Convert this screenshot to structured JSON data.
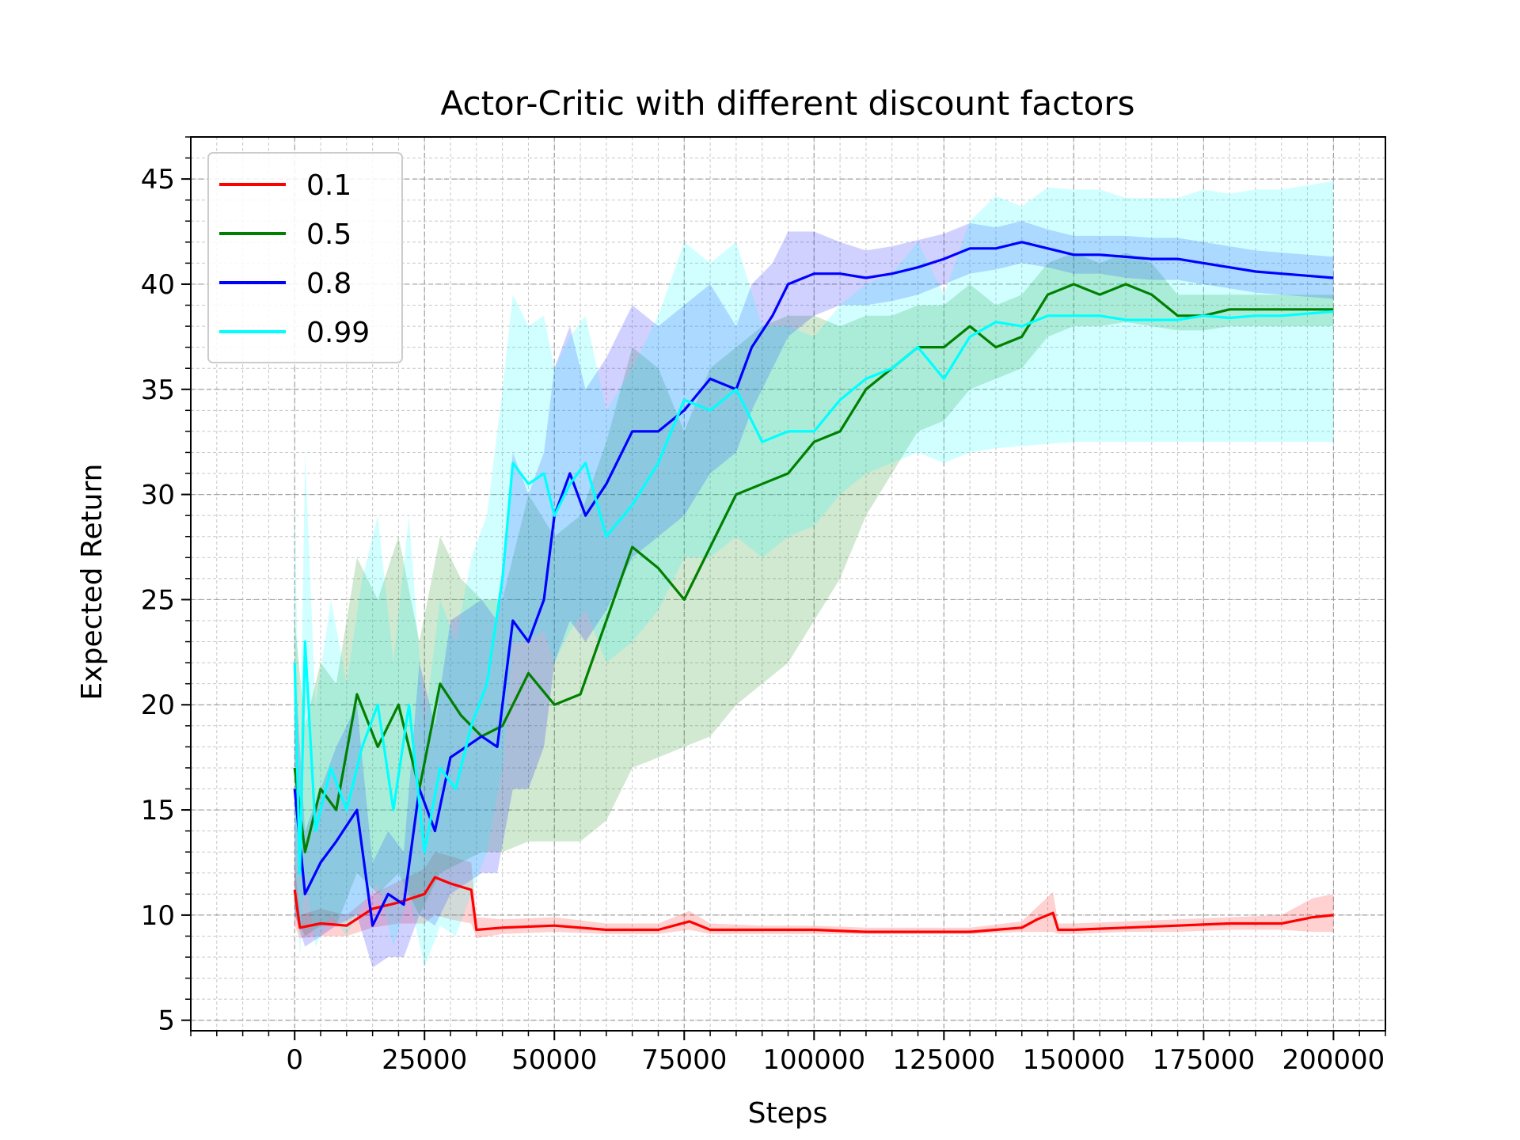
{
  "chart_data": {
    "type": "line",
    "title": "Actor-Critic with different discount factors",
    "xlabel": "Steps",
    "ylabel": "Expected Return",
    "xlim": [
      -20000,
      210000
    ],
    "ylim": [
      4.5,
      47
    ],
    "xticks": [
      0,
      25000,
      50000,
      75000,
      100000,
      125000,
      150000,
      175000,
      200000
    ],
    "xtick_labels": [
      "0",
      "25000",
      "50000",
      "75000",
      "100000",
      "125000",
      "150000",
      "175000",
      "200000"
    ],
    "yticks": [
      5,
      10,
      15,
      20,
      25,
      30,
      35,
      40,
      45
    ],
    "ytick_labels": [
      "5",
      "10",
      "15",
      "20",
      "25",
      "30",
      "35",
      "40",
      "45"
    ],
    "grid": true,
    "minor_grid": true,
    "legend_position": "top-left",
    "series": [
      {
        "name": "0.1",
        "color": "#ff0000",
        "x": [
          0,
          1000,
          5000,
          10000,
          15000,
          20000,
          25000,
          27000,
          30000,
          34000,
          35000,
          40000,
          50000,
          60000,
          70000,
          76000,
          80000,
          90000,
          100000,
          110000,
          120000,
          130000,
          140000,
          143000,
          146000,
          147000,
          150000,
          160000,
          170000,
          180000,
          190000,
          196000,
          200000
        ],
        "y": [
          11.2,
          9.4,
          9.6,
          9.5,
          10.3,
          10.6,
          11.0,
          11.8,
          11.5,
          11.2,
          9.3,
          9.4,
          9.5,
          9.3,
          9.3,
          9.7,
          9.3,
          9.3,
          9.3,
          9.2,
          9.2,
          9.2,
          9.4,
          9.8,
          10.1,
          9.3,
          9.3,
          9.4,
          9.5,
          9.6,
          9.6,
          9.9,
          10.0
        ],
        "band_lower": [
          9.5,
          8.9,
          9.0,
          9.0,
          9.4,
          9.6,
          9.6,
          10.0,
          9.8,
          9.6,
          8.9,
          9.1,
          9.2,
          9.1,
          9.1,
          9.3,
          9.1,
          9.1,
          9.1,
          9.1,
          9.1,
          9.1,
          9.2,
          9.2,
          9.2,
          9.1,
          9.1,
          9.2,
          9.2,
          9.3,
          9.3,
          9.2,
          9.2
        ],
        "band_upper": [
          12.5,
          10.0,
          10.3,
          10.0,
          11.0,
          11.6,
          12.2,
          13.0,
          12.8,
          12.5,
          9.9,
          9.8,
          9.9,
          9.6,
          9.6,
          10.2,
          9.6,
          9.5,
          9.5,
          9.4,
          9.4,
          9.4,
          9.7,
          10.4,
          11.1,
          9.6,
          9.6,
          9.7,
          9.8,
          9.9,
          10.0,
          10.8,
          11.0
        ]
      },
      {
        "name": "0.5",
        "color": "#008000",
        "x": [
          0,
          2000,
          5000,
          8000,
          12000,
          16000,
          20000,
          24000,
          28000,
          32000,
          36000,
          40000,
          45000,
          50000,
          55000,
          60000,
          65000,
          70000,
          75000,
          80000,
          85000,
          90000,
          95000,
          100000,
          105000,
          110000,
          115000,
          120000,
          125000,
          130000,
          135000,
          140000,
          145000,
          150000,
          155000,
          160000,
          165000,
          170000,
          175000,
          180000,
          185000,
          190000,
          195000,
          200000
        ],
        "y": [
          17.0,
          13.0,
          16.0,
          15.0,
          20.5,
          18.0,
          20.0,
          16.0,
          21.0,
          19.5,
          18.5,
          19.0,
          21.5,
          20.0,
          20.5,
          24.0,
          27.5,
          26.5,
          25.0,
          27.5,
          30.0,
          30.5,
          31.0,
          32.5,
          33.0,
          35.0,
          36.0,
          37.0,
          37.0,
          38.0,
          37.0,
          37.5,
          39.5,
          40.0,
          39.5,
          40.0,
          39.5,
          38.5,
          38.5,
          38.8,
          38.8,
          38.8,
          38.8,
          38.8
        ],
        "band_lower": [
          10.0,
          9.0,
          9.5,
          9.5,
          12.0,
          11.0,
          12.0,
          10.0,
          12.0,
          12.5,
          13.0,
          13.0,
          13.5,
          13.5,
          13.5,
          14.5,
          17.0,
          17.5,
          18.0,
          18.5,
          20.0,
          21.0,
          22.0,
          24.0,
          26.0,
          29.0,
          31.0,
          33.0,
          33.5,
          35.0,
          35.5,
          36.0,
          37.5,
          38.0,
          38.0,
          38.2,
          38.0,
          37.8,
          37.8,
          38.0,
          38.0,
          38.0,
          38.0,
          38.0
        ],
        "band_upper": [
          24.0,
          19.0,
          22.0,
          21.0,
          27.0,
          25.0,
          28.0,
          23.0,
          28.0,
          26.0,
          25.0,
          25.0,
          30.0,
          28.0,
          29.0,
          32.5,
          37.0,
          36.0,
          33.0,
          36.0,
          37.0,
          38.0,
          38.5,
          38.5,
          38.0,
          38.5,
          38.5,
          39.0,
          39.0,
          40.0,
          39.0,
          39.5,
          41.0,
          41.5,
          41.0,
          41.5,
          41.0,
          39.5,
          39.5,
          39.5,
          39.5,
          39.5,
          39.5,
          39.5
        ]
      },
      {
        "name": "0.8",
        "color": "#0000ff",
        "x": [
          0,
          2000,
          5000,
          8000,
          12000,
          15000,
          18000,
          21000,
          24000,
          27000,
          30000,
          33000,
          36000,
          39000,
          42000,
          45000,
          48000,
          50000,
          53000,
          56000,
          60000,
          65000,
          70000,
          75000,
          80000,
          85000,
          88000,
          92000,
          95000,
          100000,
          105000,
          110000,
          115000,
          120000,
          125000,
          130000,
          135000,
          140000,
          145000,
          150000,
          155000,
          160000,
          165000,
          170000,
          175000,
          180000,
          185000,
          190000,
          195000,
          200000
        ],
        "y": [
          16.0,
          11.0,
          12.5,
          13.5,
          15.0,
          9.5,
          11.0,
          10.5,
          16.0,
          14.0,
          17.5,
          18.0,
          18.5,
          18.0,
          24.0,
          23.0,
          25.0,
          29.0,
          31.0,
          29.0,
          30.5,
          33.0,
          33.0,
          34.0,
          35.5,
          35.0,
          37.0,
          38.5,
          40.0,
          40.5,
          40.5,
          40.3,
          40.5,
          40.8,
          41.2,
          41.7,
          41.7,
          42.0,
          41.7,
          41.4,
          41.4,
          41.3,
          41.2,
          41.2,
          41.0,
          40.8,
          40.6,
          40.5,
          40.4,
          40.3
        ],
        "band_lower": [
          10.0,
          8.5,
          9.0,
          9.5,
          10.0,
          7.5,
          8.0,
          8.0,
          10.0,
          9.5,
          11.0,
          11.5,
          12.0,
          12.0,
          16.0,
          16.0,
          18.0,
          22.0,
          24.0,
          23.0,
          24.5,
          27.0,
          28.0,
          29.0,
          31.0,
          32.0,
          34.0,
          36.0,
          37.5,
          38.5,
          39.0,
          39.0,
          39.2,
          39.5,
          40.0,
          40.5,
          40.7,
          41.0,
          40.8,
          40.5,
          40.5,
          40.3,
          40.2,
          40.2,
          40.0,
          39.8,
          39.6,
          39.5,
          39.4,
          39.3
        ],
        "band_upper": [
          22.0,
          14.0,
          16.0,
          18.0,
          20.0,
          12.5,
          14.0,
          13.0,
          22.0,
          19.0,
          24.0,
          24.5,
          25.0,
          24.0,
          32.0,
          30.0,
          32.0,
          36.0,
          38.0,
          35.0,
          36.5,
          39.0,
          38.0,
          39.0,
          40.0,
          38.0,
          40.0,
          41.0,
          42.5,
          42.5,
          42.0,
          41.6,
          41.8,
          42.1,
          42.4,
          42.9,
          42.7,
          43.0,
          42.6,
          42.3,
          42.3,
          42.3,
          42.2,
          42.2,
          42.0,
          41.8,
          41.6,
          41.5,
          41.4,
          41.3
        ]
      },
      {
        "name": "0.99",
        "color": "#00ffff",
        "x": [
          0,
          1000,
          2000,
          4000,
          7000,
          10000,
          13000,
          16000,
          19000,
          22000,
          25000,
          28000,
          31000,
          34000,
          37000,
          40000,
          42000,
          45000,
          48000,
          50000,
          53000,
          56000,
          60000,
          65000,
          70000,
          75000,
          80000,
          85000,
          90000,
          95000,
          100000,
          105000,
          110000,
          115000,
          120000,
          125000,
          130000,
          135000,
          140000,
          145000,
          150000,
          155000,
          160000,
          165000,
          170000,
          175000,
          180000,
          185000,
          190000,
          195000,
          200000
        ],
        "y": [
          22.0,
          12.0,
          23.0,
          14.0,
          17.0,
          15.0,
          18.0,
          20.0,
          15.0,
          20.0,
          13.0,
          17.0,
          16.0,
          19.0,
          21.0,
          26.0,
          31.5,
          30.5,
          31.0,
          29.0,
          30.5,
          31.5,
          28.0,
          29.5,
          31.5,
          34.5,
          34.0,
          35.0,
          32.5,
          33.0,
          33.0,
          34.5,
          35.5,
          36.0,
          37.0,
          35.5,
          37.5,
          38.2,
          38.0,
          38.5,
          38.5,
          38.5,
          38.3,
          38.3,
          38.3,
          38.5,
          38.4,
          38.5,
          38.5,
          38.6,
          38.7
        ],
        "band_lower": [
          14.0,
          8.0,
          12.0,
          8.5,
          10.0,
          9.0,
          10.5,
          11.5,
          8.5,
          11.0,
          7.5,
          9.5,
          9.0,
          11.0,
          13.0,
          17.0,
          23.0,
          23.0,
          23.5,
          22.0,
          23.5,
          24.5,
          22.0,
          23.0,
          24.5,
          27.0,
          27.0,
          28.0,
          27.0,
          28.0,
          28.5,
          30.0,
          31.0,
          31.5,
          32.0,
          31.5,
          32.0,
          32.2,
          32.3,
          32.4,
          32.5,
          32.5,
          32.5,
          32.5,
          32.5,
          32.5,
          32.5,
          32.5,
          32.5,
          32.5,
          32.5
        ],
        "band_upper": [
          30.0,
          16.0,
          32.0,
          20.0,
          25.0,
          21.0,
          26.0,
          29.0,
          22.0,
          29.0,
          19.0,
          25.0,
          23.0,
          27.0,
          29.0,
          35.0,
          39.5,
          38.0,
          38.5,
          36.0,
          37.5,
          38.5,
          34.0,
          36.0,
          38.5,
          42.0,
          41.0,
          42.0,
          38.0,
          38.0,
          37.5,
          39.0,
          40.0,
          40.5,
          42.0,
          39.5,
          43.0,
          44.2,
          43.7,
          44.6,
          44.5,
          44.5,
          44.1,
          44.1,
          44.1,
          44.5,
          44.3,
          44.5,
          44.5,
          44.7,
          44.9
        ]
      }
    ]
  }
}
